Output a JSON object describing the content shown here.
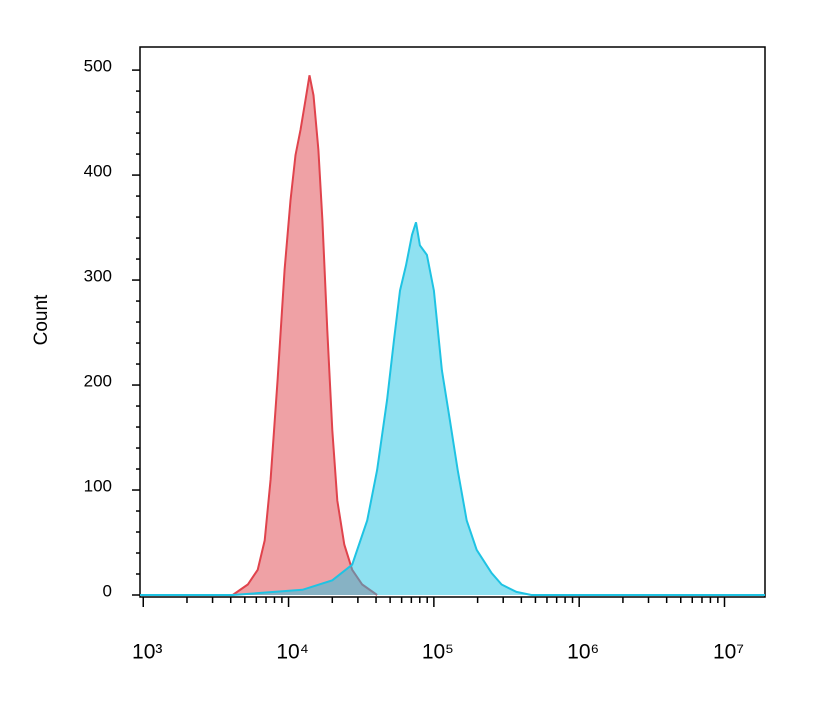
{
  "chart_data": {
    "type": "histogram-overlay",
    "y_label": "Count",
    "log_x": true,
    "xlim": [
      950,
      19000000
    ],
    "ylim": [
      0,
      522
    ],
    "xticks": [
      {
        "value": 1000,
        "label": "10³"
      },
      {
        "value": 10000,
        "label": "10⁴"
      },
      {
        "value": 100000,
        "label": "10⁵"
      },
      {
        "value": 1000000,
        "label": "10⁶"
      },
      {
        "value": 10000000,
        "label": "10⁷"
      }
    ],
    "xminorticks": [
      2000,
      3000,
      4000,
      5000,
      6000,
      7000,
      8000,
      9000,
      20000,
      30000,
      40000,
      50000,
      60000,
      70000,
      80000,
      90000,
      200000,
      300000,
      400000,
      500000,
      600000,
      700000,
      800000,
      900000,
      2000000,
      3000000,
      4000000,
      5000000,
      6000000,
      7000000,
      8000000,
      9000000
    ],
    "yticks": [
      0,
      100,
      200,
      300,
      400,
      500
    ],
    "yminorticks": [
      20,
      40,
      60,
      80,
      120,
      140,
      160,
      180,
      220,
      240,
      260,
      280,
      320,
      340,
      360,
      380,
      420,
      440,
      460,
      480
    ],
    "series": [
      {
        "color": "#e0434c",
        "x": [
          4130,
          5240,
          6130,
          6850,
          7530,
          8410,
          9390,
          10320,
          11170,
          12080,
          13070,
          13930,
          14840,
          16040,
          17100,
          18490,
          20000,
          21660,
          24190,
          27420,
          32130,
          40700
        ],
        "values": [
          0,
          10,
          24,
          52,
          110,
          205,
          310,
          376,
          419,
          443,
          471,
          495,
          476,
          424,
          357,
          252,
          157,
          90,
          48,
          24,
          10,
          0
        ]
      },
      {
        "color": "#1fc3e3",
        "x": [
          950,
          4130,
          12470,
          20000,
          27420,
          34750,
          40700,
          47640,
          53200,
          58480,
          64290,
          70670,
          75340,
          80170,
          89540,
          100000,
          113500,
          128800,
          145900,
          168300,
          197200,
          249500,
          292300,
          370000,
          469000,
          19000000
        ],
        "values": [
          0,
          0,
          5,
          14,
          29,
          71,
          119,
          186,
          243,
          290,
          314,
          343,
          355,
          333,
          324,
          290,
          214,
          167,
          119,
          71,
          43,
          21,
          10,
          3,
          0,
          0
        ]
      }
    ]
  }
}
